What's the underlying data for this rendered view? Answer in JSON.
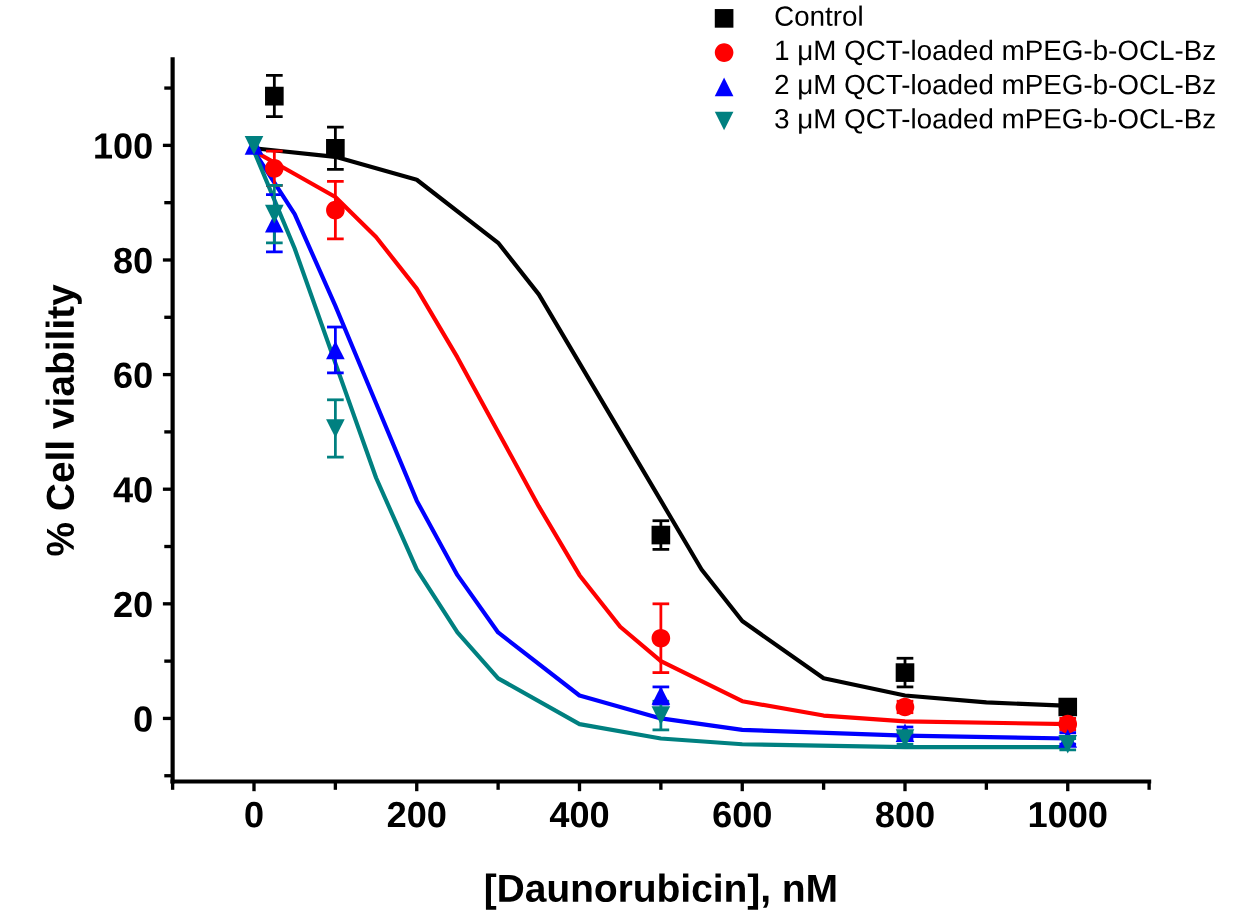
{
  "chart_data": {
    "type": "scatter",
    "xlabel": "[Daunorubicin], nM",
    "ylabel": "% Cell viability",
    "xlim": [
      -100,
      1100
    ],
    "ylim": [
      -11,
      115
    ],
    "xticks": [
      0,
      200,
      400,
      600,
      800,
      1000
    ],
    "yticks": [
      0,
      20,
      40,
      60,
      80,
      100
    ],
    "grid": false,
    "legend": "top right",
    "series": [
      {
        "name": "Control",
        "color": "#000000",
        "marker": "square",
        "x": [
          25,
          100,
          500,
          800,
          1000
        ],
        "values": [
          108.6,
          99.5,
          32,
          8,
          2
        ],
        "errors": [
          3.6,
          3.7,
          2.5,
          2.5,
          1
        ]
      },
      {
        "name": "1 μM QCT-loaded mPEG-b-OCL-Bz",
        "color": "#ff0000",
        "marker": "circle",
        "x": [
          25,
          100,
          500,
          800,
          1000
        ],
        "values": [
          96,
          88.7,
          14,
          2,
          -1
        ],
        "errors": [
          3,
          5,
          6,
          1,
          1
        ]
      },
      {
        "name": "2 μM QCT-loaded mPEG-b-OCL-Bz",
        "color": "#0000ff",
        "marker": "triangle",
        "x": [
          0,
          25,
          100,
          500,
          800,
          1000
        ],
        "values": [
          100,
          86.4,
          64.3,
          4,
          -2.5,
          -3.5
        ],
        "errors": [
          null,
          5,
          4,
          1.5,
          1,
          1
        ]
      },
      {
        "name": "3 μM QCT-loaded mPEG-b-OCL-Bz",
        "color": "#008080",
        "marker": "triangle-down",
        "x": [
          0,
          25,
          100,
          500,
          800,
          1000
        ],
        "values": [
          100,
          88,
          50.6,
          0.5,
          -3.5,
          -4.5
        ],
        "errors": [
          null,
          5,
          5,
          2.5,
          1,
          1
        ]
      },
      {
        "type": "line",
        "color": "#000000",
        "marker": "none",
        "x": [
          0,
          100,
          200,
          300,
          350,
          400,
          450,
          500,
          550,
          600,
          700,
          800,
          900,
          1000
        ],
        "values": [
          99.5,
          98,
          94,
          83,
          74,
          62,
          50,
          38,
          26,
          17,
          7,
          4,
          2.8,
          2.2
        ]
      },
      {
        "type": "line",
        "color": "#ff0000",
        "marker": "none",
        "x": [
          0,
          50,
          100,
          150,
          200,
          250,
          300,
          350,
          400,
          450,
          500,
          600,
          700,
          800,
          1000
        ],
        "values": [
          99,
          95,
          91,
          84,
          75,
          63,
          50,
          37,
          25,
          16,
          10,
          3,
          0.5,
          -0.5,
          -1
        ]
      },
      {
        "type": "line",
        "color": "#0000ff",
        "marker": "none",
        "x": [
          0,
          50,
          100,
          150,
          200,
          250,
          300,
          400,
          500,
          600,
          800,
          1000
        ],
        "values": [
          99,
          88,
          72,
          55,
          38,
          25,
          15,
          4,
          0,
          -2,
          -3,
          -3.5
        ]
      },
      {
        "type": "line",
        "color": "#008080",
        "marker": "none",
        "x": [
          0,
          50,
          100,
          150,
          200,
          250,
          300,
          400,
          500,
          600,
          800,
          1000
        ],
        "values": [
          99,
          82,
          62,
          42,
          26,
          15,
          7,
          -1,
          -3.5,
          -4.5,
          -5,
          -5
        ]
      }
    ]
  }
}
